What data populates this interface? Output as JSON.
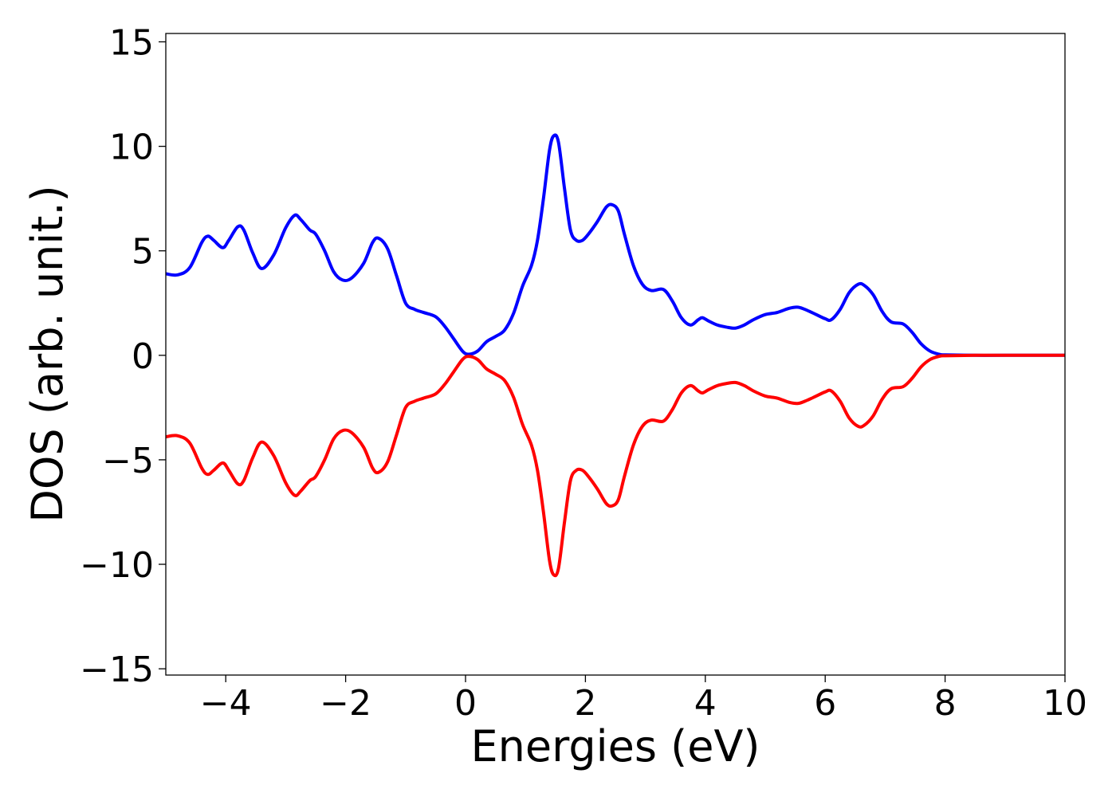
{
  "chart_data": {
    "type": "line",
    "title": "",
    "xlabel": "Energies (eV)",
    "ylabel": "DOS (arb. unit.)",
    "xlim": [
      -5,
      10
    ],
    "ylim": [
      -15.3,
      15.4
    ],
    "grid": false,
    "legend": "none",
    "xticks": [
      -4,
      -2,
      0,
      2,
      4,
      6,
      8,
      10
    ],
    "xtick_labels": [
      "−4",
      "−2",
      "0",
      "2",
      "4",
      "6",
      "8",
      "10"
    ],
    "yticks": [
      -15,
      -10,
      -5,
      0,
      5,
      10,
      15
    ],
    "ytick_labels": [
      "−15",
      "−10",
      "−5",
      "0",
      "5",
      "10",
      "15"
    ],
    "series": [
      {
        "color": "#0000ff",
        "x": [
          -5.0,
          -4.8,
          -4.6,
          -4.4,
          -4.3,
          -4.2,
          -4.05,
          -3.95,
          -3.8,
          -3.7,
          -3.55,
          -3.4,
          -3.2,
          -3.0,
          -2.85,
          -2.75,
          -2.6,
          -2.5,
          -2.35,
          -2.2,
          -2.05,
          -1.9,
          -1.7,
          -1.55,
          -1.45,
          -1.3,
          -1.15,
          -1.0,
          -0.85,
          -0.7,
          -0.5,
          -0.35,
          -0.2,
          -0.05,
          0.05,
          0.2,
          0.35,
          0.5,
          0.65,
          0.8,
          0.95,
          1.1,
          1.2,
          1.3,
          1.4,
          1.47,
          1.55,
          1.65,
          1.75,
          1.85,
          1.95,
          2.05,
          2.2,
          2.35,
          2.45,
          2.55,
          2.65,
          2.8,
          2.95,
          3.1,
          3.3,
          3.45,
          3.6,
          3.75,
          3.88,
          3.95,
          4.05,
          4.2,
          4.35,
          4.5,
          4.65,
          4.8,
          5.0,
          5.2,
          5.4,
          5.55,
          5.7,
          5.85,
          6.0,
          6.1,
          6.25,
          6.4,
          6.55,
          6.65,
          6.8,
          6.95,
          7.1,
          7.3,
          7.45,
          7.6,
          7.75,
          7.9,
          8.0,
          8.5,
          9.0,
          10.0
        ],
        "y": [
          3.9,
          3.85,
          4.2,
          5.4,
          5.7,
          5.5,
          5.15,
          5.5,
          6.15,
          6.0,
          4.9,
          4.15,
          4.8,
          6.1,
          6.7,
          6.5,
          6.0,
          5.8,
          5.0,
          4.0,
          3.6,
          3.7,
          4.4,
          5.4,
          5.6,
          5.1,
          3.8,
          2.5,
          2.2,
          2.05,
          1.85,
          1.4,
          0.8,
          0.2,
          0.05,
          0.2,
          0.65,
          0.9,
          1.2,
          2.0,
          3.3,
          4.3,
          5.5,
          7.5,
          9.8,
          10.5,
          10.2,
          8.0,
          6.0,
          5.5,
          5.5,
          5.8,
          6.4,
          7.1,
          7.2,
          6.9,
          5.8,
          4.3,
          3.4,
          3.1,
          3.15,
          2.6,
          1.8,
          1.45,
          1.7,
          1.8,
          1.65,
          1.45,
          1.35,
          1.3,
          1.45,
          1.7,
          1.95,
          2.05,
          2.25,
          2.3,
          2.15,
          1.95,
          1.75,
          1.7,
          2.2,
          3.0,
          3.4,
          3.35,
          2.9,
          2.1,
          1.6,
          1.5,
          1.1,
          0.55,
          0.2,
          0.05,
          0.02,
          0.0,
          0.0,
          0.0
        ]
      },
      {
        "color": "#ff0000",
        "x": [
          -5.0,
          -4.8,
          -4.6,
          -4.4,
          -4.3,
          -4.2,
          -4.05,
          -3.95,
          -3.8,
          -3.7,
          -3.55,
          -3.4,
          -3.2,
          -3.0,
          -2.85,
          -2.75,
          -2.6,
          -2.5,
          -2.35,
          -2.2,
          -2.05,
          -1.9,
          -1.7,
          -1.55,
          -1.45,
          -1.3,
          -1.15,
          -1.0,
          -0.85,
          -0.7,
          -0.5,
          -0.35,
          -0.2,
          -0.05,
          0.05,
          0.2,
          0.35,
          0.5,
          0.65,
          0.8,
          0.95,
          1.1,
          1.2,
          1.3,
          1.4,
          1.47,
          1.55,
          1.65,
          1.75,
          1.85,
          1.95,
          2.05,
          2.2,
          2.35,
          2.45,
          2.55,
          2.65,
          2.8,
          2.95,
          3.1,
          3.3,
          3.45,
          3.6,
          3.75,
          3.88,
          3.95,
          4.05,
          4.2,
          4.35,
          4.5,
          4.65,
          4.8,
          5.0,
          5.2,
          5.4,
          5.55,
          5.7,
          5.85,
          6.0,
          6.1,
          6.25,
          6.4,
          6.55,
          6.65,
          6.8,
          6.95,
          7.1,
          7.3,
          7.45,
          7.6,
          7.75,
          7.9,
          8.0,
          8.5,
          9.0,
          10.0
        ],
        "y": [
          -3.9,
          -3.85,
          -4.2,
          -5.4,
          -5.7,
          -5.5,
          -5.15,
          -5.5,
          -6.15,
          -6.0,
          -4.9,
          -4.15,
          -4.8,
          -6.1,
          -6.7,
          -6.5,
          -6.0,
          -5.8,
          -5.0,
          -4.0,
          -3.6,
          -3.7,
          -4.4,
          -5.4,
          -5.6,
          -5.1,
          -3.8,
          -2.5,
          -2.2,
          -2.05,
          -1.85,
          -1.4,
          -0.8,
          -0.2,
          -0.05,
          -0.2,
          -0.65,
          -0.9,
          -1.2,
          -2.0,
          -3.3,
          -4.3,
          -5.5,
          -7.5,
          -9.8,
          -10.5,
          -10.2,
          -8.0,
          -6.0,
          -5.5,
          -5.5,
          -5.8,
          -6.4,
          -7.1,
          -7.2,
          -6.9,
          -5.8,
          -4.3,
          -3.4,
          -3.1,
          -3.15,
          -2.6,
          -1.8,
          -1.45,
          -1.7,
          -1.8,
          -1.65,
          -1.45,
          -1.35,
          -1.3,
          -1.45,
          -1.7,
          -1.95,
          -2.05,
          -2.25,
          -2.3,
          -2.15,
          -1.95,
          -1.75,
          -1.7,
          -2.2,
          -3.0,
          -3.4,
          -3.35,
          -2.9,
          -2.1,
          -1.6,
          -1.5,
          -1.1,
          -0.55,
          -0.2,
          -0.05,
          -0.02,
          0.0,
          0.0,
          0.0
        ]
      }
    ]
  }
}
